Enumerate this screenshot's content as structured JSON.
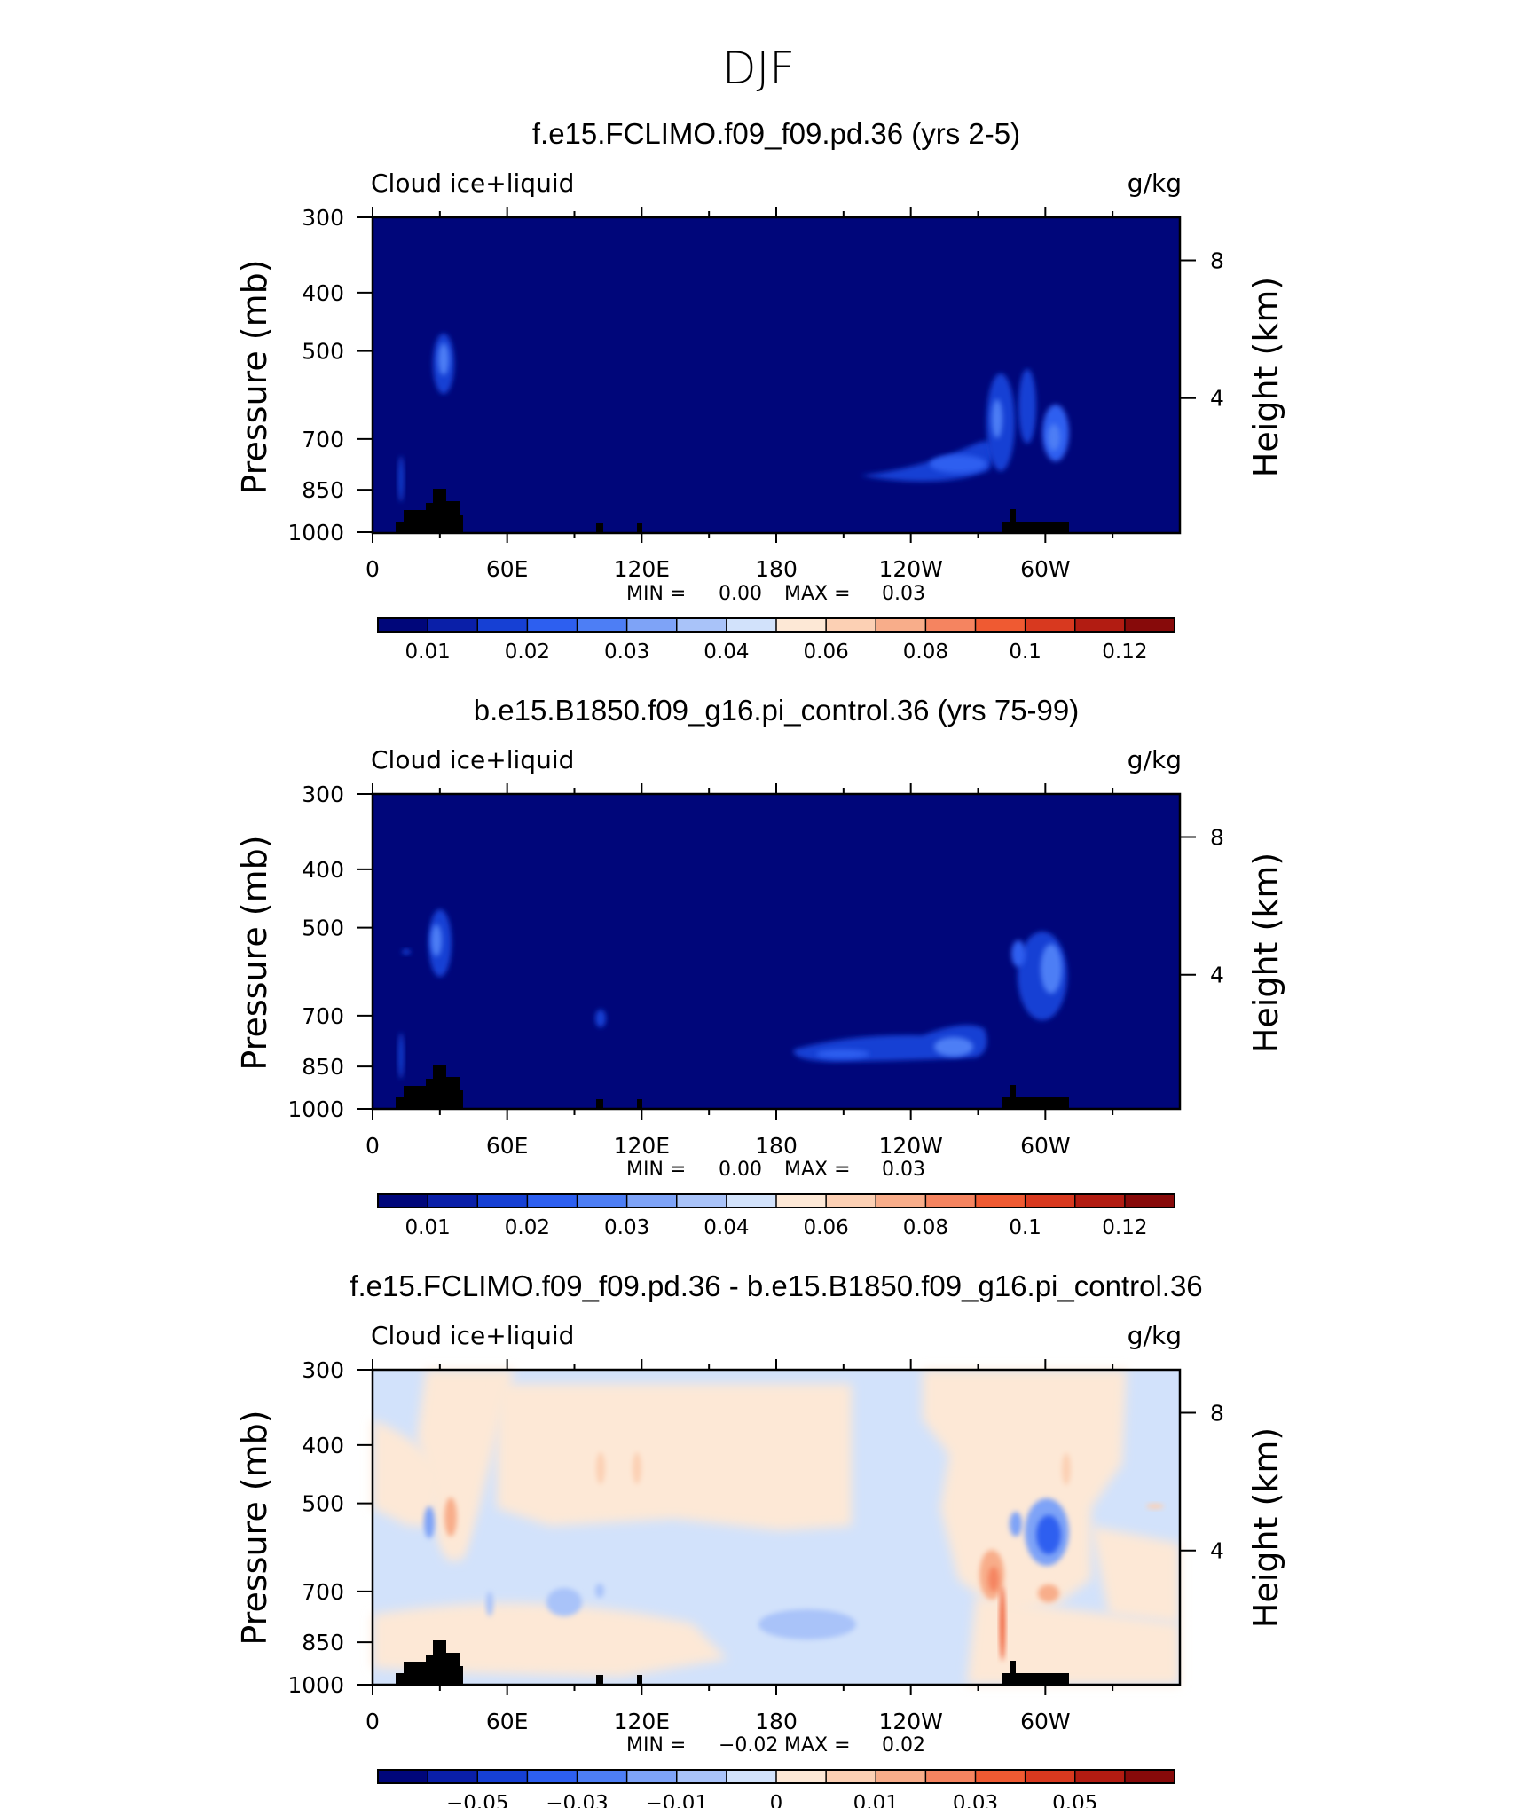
{
  "figure": {
    "title": "DJF"
  },
  "chart_data": [
    {
      "type": "heatmap",
      "title": "f.e15.FCLIMO.f09_f09.pd.36 (yrs 2-5)",
      "variable_label": "Cloud ice+liquid",
      "units_label": "g/kg",
      "ylabel": "Pressure (mb)",
      "ylabel_right": "Height (km)",
      "xticks": [
        "0",
        "60E",
        "120E",
        "180",
        "120W",
        "60W"
      ],
      "yticks": [
        "300",
        "400",
        "500",
        "700",
        "850",
        "1000"
      ],
      "yticks_right": [
        "8",
        "4"
      ],
      "xlim": [
        0,
        360
      ],
      "ylim": [
        1000,
        300
      ],
      "stats": {
        "min_label": "MIN =",
        "min_value": "0.00",
        "max_label": "MAX =",
        "max_value": "0.03"
      },
      "colorbar": {
        "colors": [
          "#00067a",
          "#0a1fa8",
          "#1640d4",
          "#2d5ff0",
          "#4d7ef5",
          "#7ea3f7",
          "#a9c3f9",
          "#d2e2fb",
          "#fde8d6",
          "#fcd0b4",
          "#f8ad8a",
          "#f58460",
          "#ef5a32",
          "#d8391f",
          "#b21c12",
          "#870a0a"
        ],
        "tick_labels": [
          "0.01",
          "0.02",
          "0.03",
          "0.04",
          "0.06",
          "0.08",
          "0.1",
          "0.12"
        ]
      }
    },
    {
      "type": "heatmap",
      "title": "b.e15.B1850.f09_g16.pi_control.36 (yrs 75-99)",
      "variable_label": "Cloud ice+liquid",
      "units_label": "g/kg",
      "ylabel": "Pressure (mb)",
      "ylabel_right": "Height (km)",
      "xticks": [
        "0",
        "60E",
        "120E",
        "180",
        "120W",
        "60W"
      ],
      "yticks": [
        "300",
        "400",
        "500",
        "700",
        "850",
        "1000"
      ],
      "yticks_right": [
        "8",
        "4"
      ],
      "xlim": [
        0,
        360
      ],
      "ylim": [
        1000,
        300
      ],
      "stats": {
        "min_label": "MIN =",
        "min_value": "0.00",
        "max_label": "MAX =",
        "max_value": "0.03"
      },
      "colorbar": {
        "colors": [
          "#00067a",
          "#0a1fa8",
          "#1640d4",
          "#2d5ff0",
          "#4d7ef5",
          "#7ea3f7",
          "#a9c3f9",
          "#d2e2fb",
          "#fde8d6",
          "#fcd0b4",
          "#f8ad8a",
          "#f58460",
          "#ef5a32",
          "#d8391f",
          "#b21c12",
          "#870a0a"
        ],
        "tick_labels": [
          "0.01",
          "0.02",
          "0.03",
          "0.04",
          "0.06",
          "0.08",
          "0.1",
          "0.12"
        ]
      }
    },
    {
      "type": "heatmap",
      "title": "f.e15.FCLIMO.f09_f09.pd.36 - b.e15.B1850.f09_g16.pi_control.36",
      "variable_label": "Cloud ice+liquid",
      "units_label": "g/kg",
      "ylabel": "Pressure (mb)",
      "ylabel_right": "Height (km)",
      "xticks": [
        "0",
        "60E",
        "120E",
        "180",
        "120W",
        "60W"
      ],
      "yticks": [
        "300",
        "400",
        "500",
        "700",
        "850",
        "1000"
      ],
      "yticks_right": [
        "8",
        "4"
      ],
      "xlim": [
        0,
        360
      ],
      "ylim": [
        1000,
        300
      ],
      "stats": {
        "min_label": "MIN =",
        "min_value": "−0.02",
        "max_label": "MAX =",
        "max_value": "0.02"
      },
      "colorbar": {
        "colors": [
          "#00067a",
          "#0a1fa8",
          "#1640d4",
          "#2d5ff0",
          "#4d7ef5",
          "#7ea3f7",
          "#a9c3f9",
          "#d2e2fb",
          "#fde8d6",
          "#fcd0b4",
          "#f8ad8a",
          "#f58460",
          "#ef5a32",
          "#d8391f",
          "#b21c12",
          "#870a0a"
        ],
        "tick_labels": [
          "−0.05",
          "−0.03",
          "−0.01",
          "0",
          "0.01",
          "0.03",
          "0.05"
        ]
      }
    }
  ]
}
